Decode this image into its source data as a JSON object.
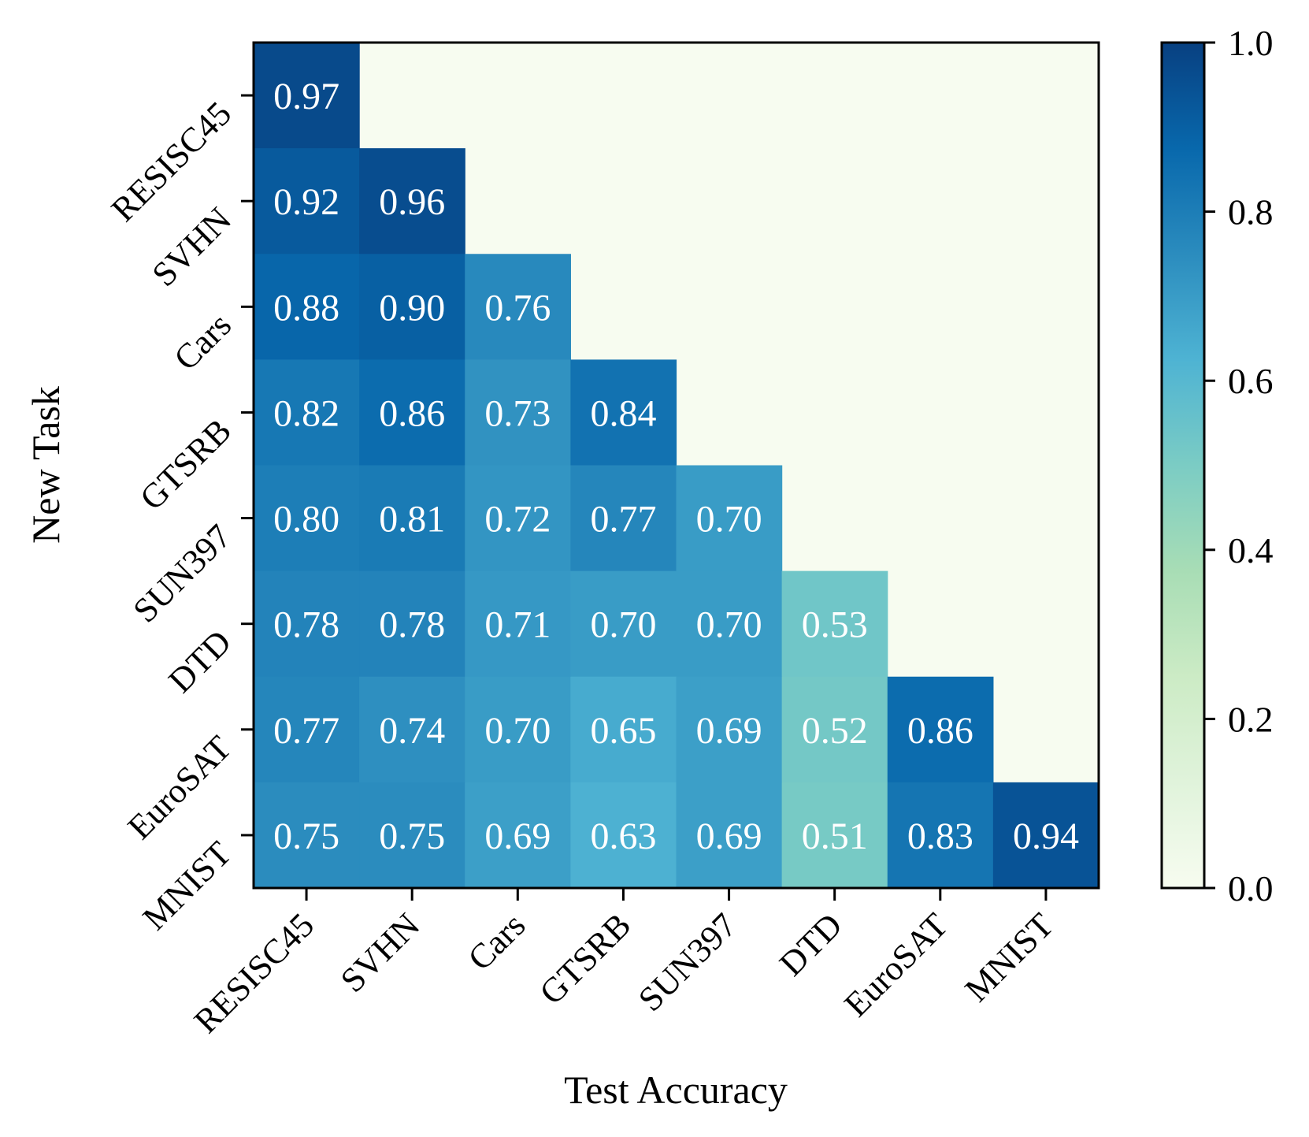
{
  "chart_data": {
    "type": "heatmap",
    "xlabel": "Test Accuracy",
    "ylabel": "New Task",
    "x_categories": [
      "RESISC45",
      "SVHN",
      "Cars",
      "GTSRB",
      "SUN397",
      "DTD",
      "EuroSAT",
      "MNIST"
    ],
    "y_categories": [
      "RESISC45",
      "SVHN",
      "Cars",
      "GTSRB",
      "SUN397",
      "DTD",
      "EuroSAT",
      "MNIST"
    ],
    "values": [
      [
        0.97,
        null,
        null,
        null,
        null,
        null,
        null,
        null
      ],
      [
        0.92,
        0.96,
        null,
        null,
        null,
        null,
        null,
        null
      ],
      [
        0.88,
        0.9,
        0.76,
        null,
        null,
        null,
        null,
        null
      ],
      [
        0.82,
        0.86,
        0.73,
        0.84,
        null,
        null,
        null,
        null
      ],
      [
        0.8,
        0.81,
        0.72,
        0.77,
        0.7,
        null,
        null,
        null
      ],
      [
        0.78,
        0.78,
        0.71,
        0.7,
        0.7,
        0.53,
        null,
        null
      ],
      [
        0.77,
        0.74,
        0.7,
        0.65,
        0.69,
        0.52,
        0.86,
        null
      ],
      [
        0.75,
        0.75,
        0.69,
        0.63,
        0.69,
        0.51,
        0.83,
        0.94
      ]
    ],
    "value_labels": [
      [
        "0.97",
        "",
        "",
        "",
        "",
        "",
        "",
        ""
      ],
      [
        "0.92",
        "0.96",
        "",
        "",
        "",
        "",
        "",
        ""
      ],
      [
        "0.88",
        "0.90",
        "0.76",
        "",
        "",
        "",
        "",
        ""
      ],
      [
        "0.82",
        "0.86",
        "0.73",
        "0.84",
        "",
        "",
        "",
        ""
      ],
      [
        "0.80",
        "0.81",
        "0.72",
        "0.77",
        "0.70",
        "",
        "",
        ""
      ],
      [
        "0.78",
        "0.78",
        "0.71",
        "0.70",
        "0.70",
        "0.53",
        "",
        ""
      ],
      [
        "0.77",
        "0.74",
        "0.70",
        "0.65",
        "0.69",
        "0.52",
        "0.86",
        ""
      ],
      [
        "0.75",
        "0.75",
        "0.69",
        "0.63",
        "0.69",
        "0.51",
        "0.83",
        "0.94"
      ]
    ],
    "colorbar": {
      "range": [
        0,
        1
      ],
      "ticks": [
        0.0,
        0.2,
        0.4,
        0.6,
        0.8,
        1.0
      ],
      "tick_labels": [
        "0.0",
        "0.2",
        "0.4",
        "0.6",
        "0.8",
        "1.0"
      ],
      "colormap": "GnBu",
      "colormap_stops": [
        "#f7fcf0",
        "#e0f3db",
        "#ccebc5",
        "#a8ddb5",
        "#7bccc4",
        "#4eb3d3",
        "#2b8cbe",
        "#0868ac",
        "#084081"
      ]
    },
    "empty_cell_color": "#f7fcf0"
  }
}
